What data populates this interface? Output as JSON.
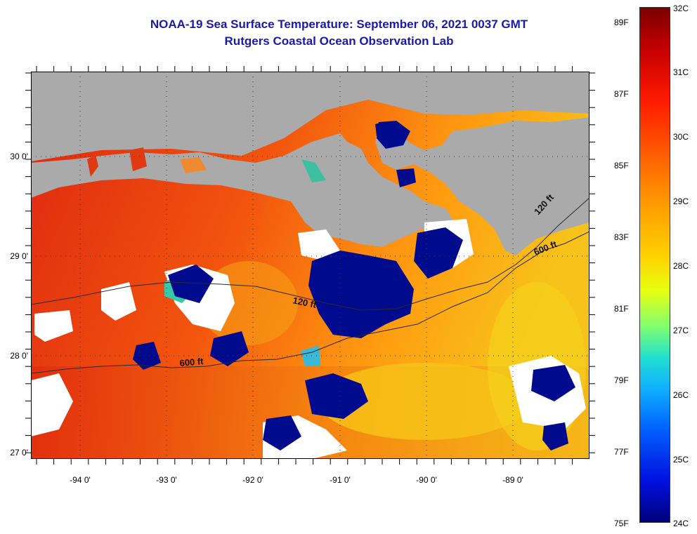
{
  "title": {
    "line1": "NOAA-19 Sea Surface Temperature:  September 06, 2021 0037 GMT",
    "line2": "Rutgers Coastal Ocean Observation Lab"
  },
  "map": {
    "lat_labels": [
      "30 0'",
      "29 0'",
      "28 0'",
      "27 0'"
    ],
    "lon_labels": [
      "-94 0'",
      "-93 0'",
      "-92 0'",
      "-91 0'",
      "-90 0'",
      "-89 0'"
    ],
    "depth_labels": [
      "120 ft",
      "600 ft",
      "120 ft",
      "600 ft"
    ]
  },
  "colorbar": {
    "fahrenheit": [
      "89F",
      "87F",
      "85F",
      "83F",
      "81F",
      "79F",
      "77F",
      "75F"
    ],
    "celsius": [
      "32C",
      "31C",
      "30C",
      "29C",
      "28C",
      "27C",
      "26C",
      "25C",
      "24C"
    ]
  },
  "colors": {
    "land": "#aaaaaa",
    "cloud": "#ffffff",
    "title": "#1a1aa8",
    "warm_sea": "#e8280c",
    "cool_blob": "#000a8c"
  }
}
